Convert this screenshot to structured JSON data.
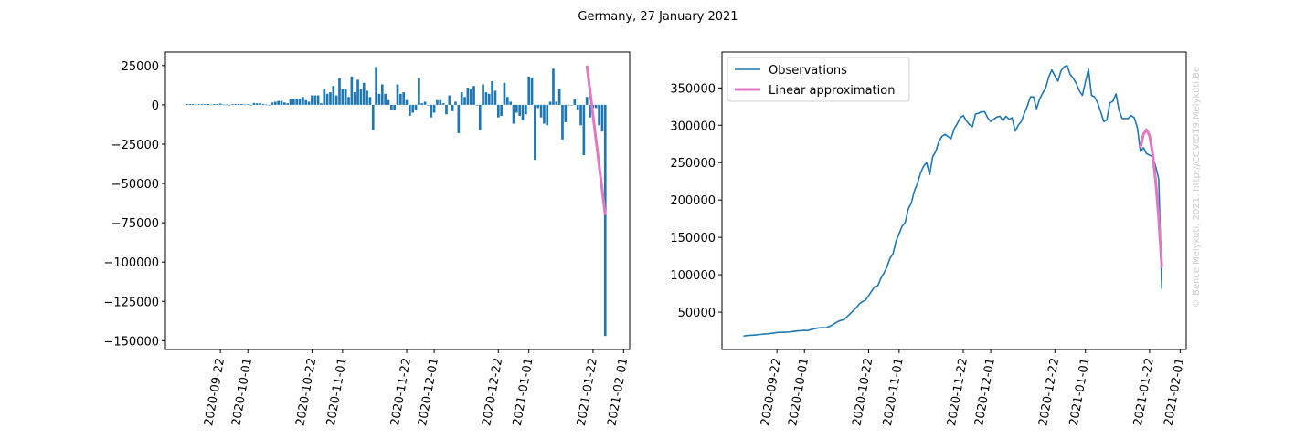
{
  "title": "Germany, 27 January 2021",
  "watermark": "© Bence Melykuti, 2021. http://COVID19.Melykuti.Be",
  "chart_data": [
    {
      "type": "bar",
      "xlim": [
        "2020-09-04",
        "2021-02-03"
      ],
      "xticks": [
        "2020-09-22",
        "2020-10-01",
        "2020-10-22",
        "2020-11-01",
        "2020-11-22",
        "2020-12-01",
        "2020-12-22",
        "2021-01-01",
        "2021-01-22",
        "2021-02-01"
      ],
      "ylim": [
        -155600,
        33600
      ],
      "yticks": [
        25000,
        0,
        {
          "value": -25000,
          "label": "−25000"
        },
        {
          "value": -50000,
          "label": "−50000"
        },
        {
          "value": -75000,
          "label": "−75000"
        },
        {
          "value": -100000,
          "label": "−100000"
        },
        {
          "value": -125000,
          "label": "−125000"
        },
        {
          "value": -150000,
          "label": "−150000"
        }
      ],
      "series": [
        {
          "type": "bar",
          "color": "#1f77b4",
          "start": "2020-09-11",
          "values": [
            500,
            500,
            500,
            200,
            300,
            500,
            300,
            500,
            200,
            500,
            500,
            800,
            200,
            200,
            -100,
            400,
            500,
            500,
            500,
            200,
            300,
            -200,
            1200,
            1000,
            1000,
            500,
            200,
            -200,
            1500,
            2000,
            2500,
            2500,
            1500,
            1000,
            4000,
            4000,
            4000,
            4000,
            5000,
            3000,
            2000,
            6000,
            6000,
            6000,
            1000,
            10000,
            7000,
            8000,
            12000,
            6000,
            17000,
            10000,
            10000,
            5000,
            18000,
            8000,
            16000,
            10000,
            14000,
            9000,
            5000,
            -16000,
            24000,
            7000,
            13000,
            7000,
            3000,
            -3000,
            -3000,
            13000,
            7000,
            8000,
            3000,
            -7000,
            -5000,
            -3000,
            17000,
            1000,
            2000,
            0,
            -8000,
            -5000,
            3000,
            3000,
            1000,
            -6000,
            6000,
            -4000,
            2000,
            -18000,
            8000,
            5000,
            11000,
            10000,
            12000,
            0,
            -16000,
            13000,
            8000,
            7000,
            15000,
            9000,
            -8000,
            -7000,
            14000,
            5000,
            2000,
            -12000,
            -5000,
            -7000,
            -10000,
            -6000,
            18000,
            17000,
            -35000,
            -2000,
            -8000,
            -12000,
            -13000,
            2000,
            23000,
            2000,
            10000,
            -22000,
            -11000,
            0,
            0,
            4000,
            -3000,
            -13000,
            -32000,
            5000,
            -8000,
            -2000,
            -2000,
            -13000,
            -17000,
            -147000
          ]
        },
        {
          "type": "line",
          "color": "#e377c2",
          "x": [
            "2021-01-20",
            "2021-01-21",
            "2021-01-22",
            "2021-01-23",
            "2021-01-24",
            "2021-01-25",
            "2021-01-26"
          ],
          "values": [
            25000,
            9200,
            -6700,
            -22500,
            -38300,
            -54200,
            -70000
          ]
        }
      ]
    },
    {
      "type": "line",
      "xlim": [
        "2020-09-04",
        "2021-02-03"
      ],
      "xticks": [
        "2020-09-22",
        "2020-10-01",
        "2020-10-22",
        "2020-11-01",
        "2020-11-22",
        "2020-12-01",
        "2020-12-22",
        "2021-01-01",
        "2021-01-22",
        "2021-02-01"
      ],
      "ylim": [
        0,
        398000
      ],
      "yticks": [
        50000,
        100000,
        150000,
        200000,
        250000,
        300000,
        350000
      ],
      "legend": "upper left",
      "series": [
        {
          "name": "Observations",
          "color": "#1f77b4",
          "start": "2020-09-11",
          "values": [
            18000,
            18500,
            19000,
            19200,
            19500,
            20000,
            20300,
            20800,
            21000,
            21500,
            22000,
            22800,
            23000,
            23200,
            23100,
            23500,
            24000,
            24500,
            25000,
            25200,
            25500,
            25300,
            26500,
            27500,
            28500,
            29000,
            29200,
            29000,
            30500,
            32500,
            35000,
            37500,
            39000,
            40000,
            44000,
            48000,
            52000,
            56000,
            61000,
            64000,
            66000,
            72000,
            78000,
            84000,
            85000,
            95000,
            102000,
            110000,
            122000,
            128000,
            145000,
            155000,
            165000,
            170000,
            188000,
            196000,
            212000,
            222000,
            236000,
            245000,
            250000,
            234000,
            258000,
            265000,
            278000,
            285000,
            288000,
            285000,
            282000,
            295000,
            302000,
            310000,
            313000,
            306000,
            301000,
            298000,
            315000,
            316000,
            318000,
            318000,
            310000,
            305000,
            308000,
            311000,
            312000,
            306000,
            312000,
            308000,
            310000,
            292000,
            300000,
            305000,
            316000,
            326000,
            338000,
            338000,
            322000,
            335000,
            343000,
            350000,
            365000,
            374000,
            366000,
            359000,
            373000,
            378000,
            380000,
            368000,
            363000,
            356000,
            346000,
            340000,
            358000,
            375000,
            340000,
            338000,
            330000,
            318000,
            305000,
            307000,
            330000,
            332000,
            342000,
            320000,
            309000,
            309000,
            309000,
            313000,
            310000,
            297000,
            265000,
            270000,
            262000,
            260000,
            258000,
            245000,
            228000,
            81000
          ]
        },
        {
          "name": "Linear approximation",
          "color": "#e377c2",
          "x": [
            "2021-01-19",
            "2021-01-20",
            "2021-01-21",
            "2021-01-22",
            "2021-01-23",
            "2021-01-24",
            "2021-01-25",
            "2021-01-26"
          ],
          "values": [
            270000,
            288000,
            294000,
            286000,
            262000,
            225000,
            175000,
            110000
          ]
        }
      ]
    }
  ]
}
